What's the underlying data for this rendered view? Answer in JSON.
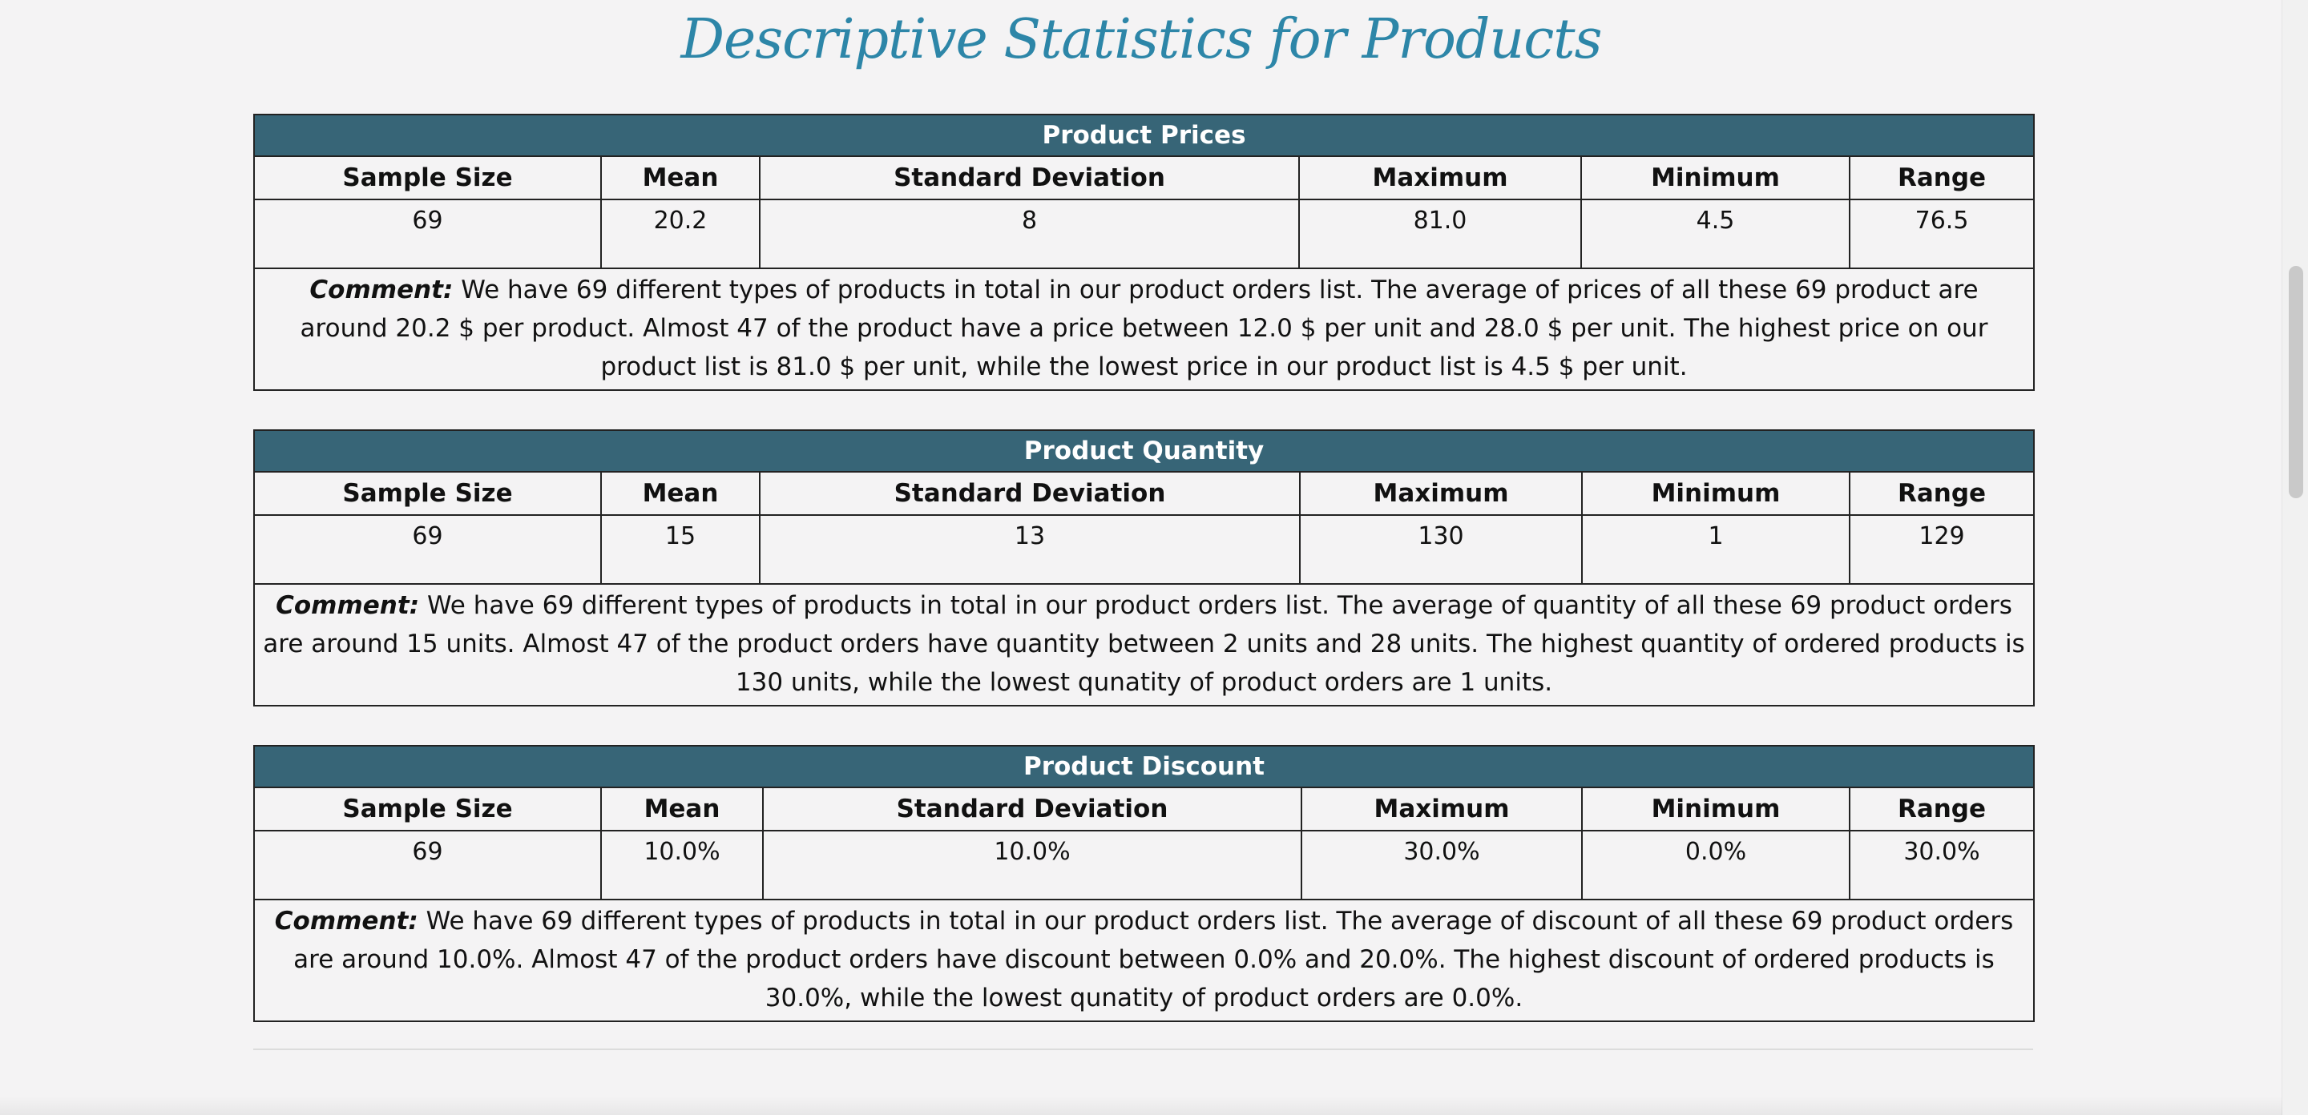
{
  "page": {
    "title": "Descriptive Statistics for Products"
  },
  "tables": [
    {
      "caption": "Product Prices",
      "headers": [
        "Sample Size",
        "Mean",
        "Standard Deviation",
        "Maximum",
        "Minimum",
        "Range"
      ],
      "values": [
        "69",
        "20.2",
        "8",
        "81.0",
        "4.5",
        "76.5"
      ],
      "comment_label": "Comment:",
      "comment_text": " We have 69 different types of products in total in our product orders list. The average of prices of all these 69 product are around 20.2 $ per product. Almost 47 of the product have a price between 12.0 $ per unit and 28.0 $ per unit. The highest price on our product list is 81.0 $ per unit, while the lowest price in our product list is 4.5 $ per unit."
    },
    {
      "caption": "Product Quantity",
      "headers": [
        "Sample Size",
        "Mean",
        "Standard Deviation",
        "Maximum",
        "Minimum",
        "Range"
      ],
      "values": [
        "69",
        "15",
        "13",
        "130",
        "1",
        "129"
      ],
      "comment_label": "Comment:",
      "comment_text": " We have 69 different types of products in total in our product orders list. The average of quantity of all these 69 product orders are around 15 units. Almost 47 of the product orders have quantity between 2 units and 28 units. The highest quantity of ordered products is 130 units, while the lowest qunatity of product orders are 1 units."
    },
    {
      "caption": "Product Discount",
      "headers": [
        "Sample Size",
        "Mean",
        "Standard Deviation",
        "Maximum",
        "Minimum",
        "Range"
      ],
      "values": [
        "69",
        "10.0%",
        "10.0%",
        "30.0%",
        "0.0%",
        "30.0%"
      ],
      "comment_label": "Comment:",
      "comment_text": " We have 69 different types of products in total in our product orders list. The average of discount of all these 69 product orders are around 10.0%. Almost 47 of the product orders have discount between 0.0% and 20.0%. The highest discount of ordered products is 30.0%, while the lowest qunatity of product orders are 0.0%."
    }
  ]
}
